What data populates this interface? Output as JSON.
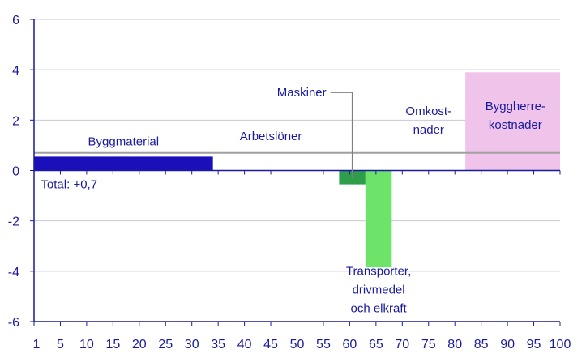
{
  "chart_data": {
    "type": "bar",
    "subtype": "variable-width",
    "x_ticks": [
      1,
      5,
      10,
      15,
      20,
      25,
      30,
      35,
      40,
      45,
      50,
      55,
      60,
      65,
      70,
      75,
      80,
      85,
      90,
      95,
      100
    ],
    "xlim": [
      0,
      100
    ],
    "y_ticks": [
      "6",
      "4",
      "2",
      "0",
      "-2",
      "-4",
      "-6"
    ],
    "ylim": [
      -6,
      6
    ],
    "grid": true,
    "total_line": {
      "value": 0.7,
      "label": "Total: +0,7",
      "color": "#a0a0a0"
    },
    "segments": [
      {
        "name": "Byggmaterial",
        "x_start": 0,
        "x_end": 34,
        "value": 0.55,
        "color": "#1a0fb8",
        "label": [
          "Byggmaterial"
        ]
      },
      {
        "name": "Arbetslöner",
        "x_start": 34,
        "x_end": 58,
        "value": 0,
        "color": "#1a0fb8",
        "label": [
          "Arbetslöner"
        ]
      },
      {
        "name": "Maskiner",
        "x_start": 58,
        "x_end": 63,
        "value": -0.55,
        "color": "#2e9e4a",
        "label": [
          "Maskiner"
        ]
      },
      {
        "name": "Transporter, drivmedel och elkraft",
        "x_start": 63,
        "x_end": 68,
        "value": -3.85,
        "color": "#6ee36a",
        "label": [
          "Transporter,",
          "drivmedel",
          "och elkraft"
        ]
      },
      {
        "name": "Omkostnader",
        "x_start": 68,
        "x_end": 82,
        "value": 0,
        "color": "#1a0fb8",
        "label": [
          "Omkost-",
          "nader"
        ]
      },
      {
        "name": "Byggherrekostnader",
        "x_start": 82,
        "x_end": 100,
        "value": 3.9,
        "color": "#efc3ea",
        "label": [
          "Byggherre-",
          "kostnader"
        ]
      }
    ],
    "axis_color": "#1a1a9e",
    "grid_color": "#c8c8d8"
  }
}
